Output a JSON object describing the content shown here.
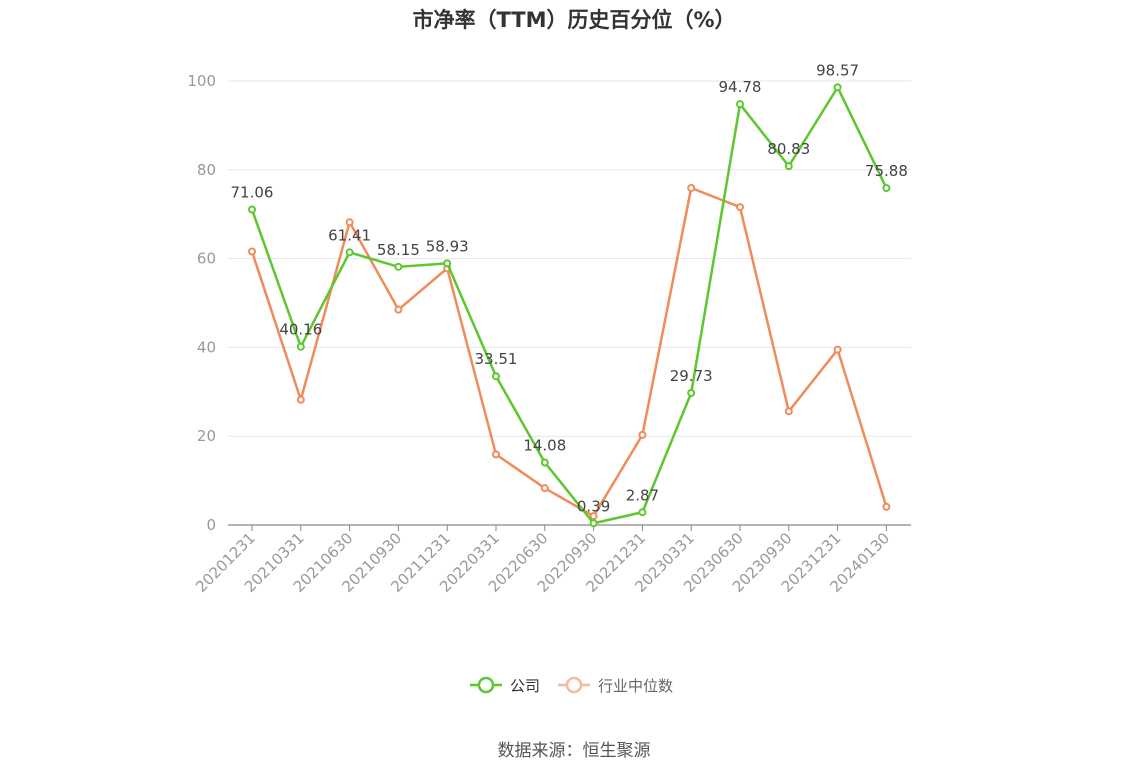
{
  "chart_data": {
    "type": "line",
    "title": "市净率（TTM）历史百分位（%）",
    "source": "数据来源：恒生聚源",
    "categories": [
      "20201231",
      "20210331",
      "20210630",
      "20210930",
      "20211231",
      "20220331",
      "20220630",
      "20220930",
      "20221231",
      "20230331",
      "20230630",
      "20230930",
      "20231231",
      "20240130"
    ],
    "ylim": [
      0,
      100
    ],
    "yticks": [
      0,
      20,
      40,
      60,
      80,
      100
    ],
    "grid": true,
    "legend_position": "bottom",
    "series": [
      {
        "name": "公司",
        "color": "#5cc72e",
        "values": [
          71.06,
          40.16,
          61.41,
          58.15,
          58.93,
          33.51,
          14.08,
          0.39,
          2.87,
          29.73,
          94.78,
          80.83,
          98.57,
          75.88
        ],
        "labels": [
          "71.06",
          "40.16",
          "61.41",
          "58.15",
          "58.93",
          "33.51",
          "14.08",
          "0.39",
          "2.87",
          "29.73",
          "94.78",
          "80.83",
          "98.57",
          "75.88"
        ]
      },
      {
        "name": "行业中位数",
        "color": "#f08b5a",
        "values": [
          61.6,
          28.2,
          68.2,
          48.5,
          57.8,
          15.9,
          8.3,
          2.0,
          20.3,
          75.9,
          71.6,
          25.6,
          39.5,
          4.1
        ]
      }
    ]
  }
}
